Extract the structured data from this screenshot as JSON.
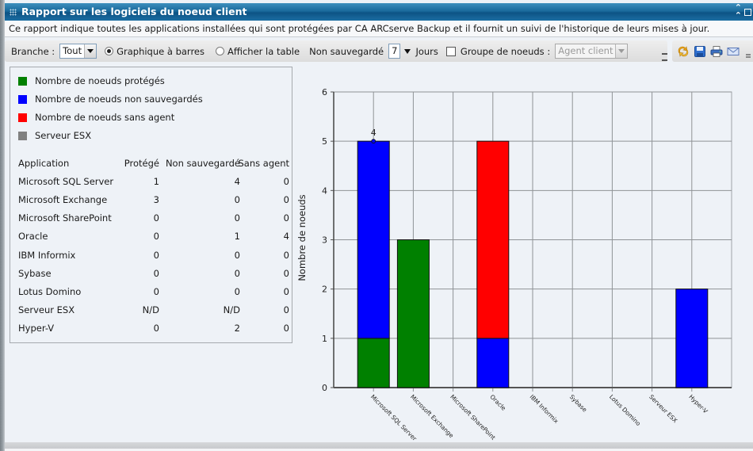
{
  "window": {
    "title": "Rapport sur les logiciels du noeud client",
    "description": "Ce rapport indique toutes les applications installées qui sont protégées par CA ARCserve Backup et il fournit un suivi de l'historique de leurs mises à jour."
  },
  "toolbar": {
    "branch_label": "Branche :",
    "branch_value": "Tout",
    "view_bar_label": "Graphique à barres",
    "view_table_label": "Afficher la table",
    "not_saved_label": "Non sauvegardé",
    "days_value": "7",
    "days_label": "Jours",
    "node_group_label": "Groupe de noeuds :",
    "node_group_value": "Agent client",
    "icons": [
      "refresh-icon",
      "save-icon",
      "print-icon",
      "email-icon"
    ]
  },
  "colors": {
    "protected": "#008000",
    "not_saved": "#0000ff",
    "no_agent": "#ff0000",
    "esx": "#808080",
    "title_bar": "#1a6a9c"
  },
  "legend": [
    {
      "label": "Nombre de noeuds protégés",
      "color": "#008000"
    },
    {
      "label": "Nombre de noeuds non sauvegardés",
      "color": "#0000ff"
    },
    {
      "label": "Nombre de noeuds sans agent",
      "color": "#ff0000"
    },
    {
      "label": "Serveur ESX",
      "color": "#808080"
    }
  ],
  "table": {
    "headers": [
      "Application",
      "Protégé",
      "Non sauvegardé",
      "Sans agent"
    ],
    "rows": [
      [
        "Microsoft SQL Server",
        "1",
        "4",
        "0"
      ],
      [
        "Microsoft Exchange",
        "3",
        "0",
        "0"
      ],
      [
        "Microsoft SharePoint",
        "0",
        "0",
        "0"
      ],
      [
        "Oracle",
        "0",
        "1",
        "4"
      ],
      [
        "IBM Informix",
        "0",
        "0",
        "0"
      ],
      [
        "Sybase",
        "0",
        "0",
        "0"
      ],
      [
        "Lotus Domino",
        "0",
        "0",
        "0"
      ],
      [
        "Serveur ESX",
        "N/D",
        "N/D",
        "0"
      ],
      [
        "Hyper-V",
        "0",
        "2",
        "0"
      ]
    ]
  },
  "chart_data": {
    "type": "bar",
    "stacked": true,
    "title": "",
    "xlabel": "",
    "ylabel": "Nombre de noeuds",
    "ylim": [
      0,
      6
    ],
    "yticks": [
      0,
      1,
      2,
      3,
      4,
      5,
      6
    ],
    "grid": true,
    "legend_position": "left panel",
    "categories": [
      "Microsoft SQL Server",
      "Microsoft Exchange",
      "Microsoft SharePoint",
      "Oracle",
      "IBM Informix",
      "Sybase",
      "Lotus Domino",
      "Serveur ESX",
      "Hyper-V"
    ],
    "series": [
      {
        "name": "Nombre de noeuds protégés",
        "color": "#008000",
        "values": [
          1,
          3,
          0,
          0,
          0,
          0,
          0,
          0,
          0
        ]
      },
      {
        "name": "Nombre de noeuds non sauvegardés",
        "color": "#0000ff",
        "values": [
          4,
          0,
          0,
          1,
          0,
          0,
          0,
          0,
          2
        ]
      },
      {
        "name": "Nombre de noeuds sans agent",
        "color": "#ff0000",
        "values": [
          0,
          0,
          0,
          4,
          0,
          0,
          0,
          0,
          0
        ]
      },
      {
        "name": "Serveur ESX",
        "color": "#808080",
        "values": [
          0,
          0,
          0,
          0,
          0,
          0,
          0,
          0,
          0
        ]
      }
    ],
    "annotations": [
      {
        "category": "Microsoft SQL Server",
        "y": 5,
        "text": "4"
      }
    ]
  }
}
